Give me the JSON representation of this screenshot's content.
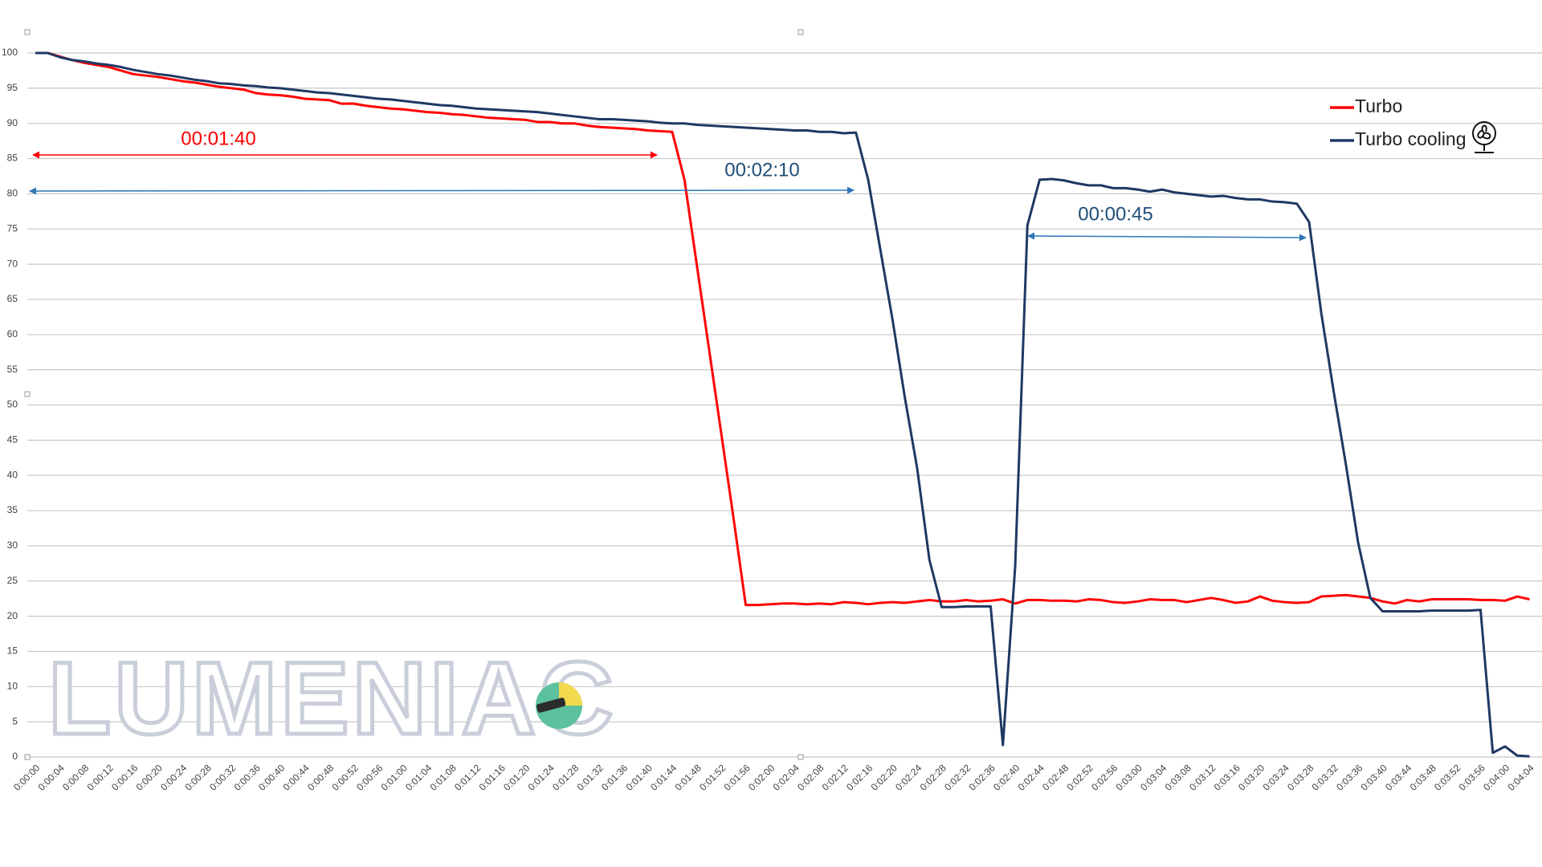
{
  "chart_data": {
    "type": "line",
    "categories": [
      "0:00:00",
      null,
      "0:00:04",
      null,
      "0:00:08",
      null,
      "0:00:12",
      null,
      "0:00:16",
      null,
      "0:00:20",
      null,
      "0:00:24",
      null,
      "0:00:28",
      null,
      "0:00:32",
      null,
      "0:00:36",
      null,
      "0:00:40",
      null,
      "0:00:44",
      null,
      "0:00:48",
      null,
      "0:00:52",
      null,
      "0:00:56",
      null,
      "0:01:00",
      null,
      "0:01:04",
      null,
      "0:01:08",
      null,
      "0:01:12",
      null,
      "0:01:16",
      null,
      "0:01:20",
      null,
      "0:01:24",
      null,
      "0:01:28",
      null,
      "0:01:32",
      null,
      "0:01:36",
      null,
      "0:01:40",
      null,
      "0:01:44",
      null,
      "0:01:48",
      null,
      "0:01:52",
      null,
      "0:01:56",
      null,
      "0:02:00",
      null,
      "0:02:04",
      null,
      "0:02:08",
      null,
      "0:02:12",
      null,
      "0:02:16",
      null,
      "0:02:20",
      null,
      "0:02:24",
      null,
      "0:02:28",
      null,
      "0:02:32",
      null,
      "0:02:36",
      null,
      "0:02:40",
      null,
      "0:02:44",
      null,
      "0:02:48",
      null,
      "0:02:52",
      null,
      "0:02:56",
      null,
      "0:03:00",
      null,
      "0:03:04",
      null,
      "0:03:08",
      null,
      "0:03:12",
      null,
      "0:03:16",
      null,
      "0:03:20",
      null,
      "0:03:24",
      null,
      "0:03:28",
      null,
      "0:03:32",
      null,
      "0:03:36",
      null,
      "0:03:40",
      null,
      "0:03:44",
      null,
      "0:03:48",
      null,
      "0:03:52",
      null,
      "0:03:56",
      null,
      "0:04:00",
      null,
      "0:04:04"
    ],
    "series": [
      {
        "name": "Turbo",
        "color": "#ff0000",
        "values": [
          100,
          100,
          99.5,
          99,
          98.6,
          98.3,
          98,
          97.5,
          97,
          96.8,
          96.6,
          96.3,
          96,
          95.8,
          95.5,
          95.2,
          95,
          94.8,
          94.3,
          94.1,
          94,
          93.8,
          93.5,
          93.4,
          93.3,
          92.8,
          92.8,
          92.5,
          92.3,
          92.1,
          92,
          91.8,
          91.6,
          91.5,
          91.3,
          91.2,
          91,
          90.8,
          90.7,
          90.6,
          90.5,
          90.2,
          90.2,
          90,
          90,
          89.7,
          89.5,
          89.4,
          89.3,
          89.2,
          89,
          88.9,
          88.8,
          82,
          70,
          58,
          46,
          34,
          21.6,
          21.6,
          21.7,
          21.8,
          21.8,
          21.7,
          21.8,
          21.7,
          22,
          21.9,
          21.7,
          21.9,
          22,
          21.9,
          22.1,
          22.3,
          22.1,
          22.1,
          22.3,
          22.1,
          22.2,
          22.4,
          21.8,
          22.3,
          22.3,
          22.2,
          22.2,
          22.1,
          22.4,
          22.3,
          22,
          21.9,
          22.1,
          22.4,
          22.3,
          22.3,
          22,
          22.3,
          22.6,
          22.3,
          21.9,
          22.1,
          22.8,
          22.2,
          22,
          21.9,
          22,
          22.8,
          22.9,
          23,
          22.8,
          22.6,
          22.1,
          21.8,
          22.3,
          22.1,
          22.4,
          22.4,
          22.4,
          22.4,
          22.3,
          22.3,
          22.2,
          22.8,
          22.4
        ]
      },
      {
        "name": "Turbo cooling",
        "color": "#1f3864",
        "values": [
          100,
          100,
          99.4,
          99,
          98.8,
          98.5,
          98.3,
          98,
          97.6,
          97.3,
          97,
          96.8,
          96.5,
          96.2,
          96,
          95.7,
          95.6,
          95.4,
          95.3,
          95.1,
          95,
          94.8,
          94.6,
          94.4,
          94.3,
          94.1,
          93.9,
          93.7,
          93.5,
          93.4,
          93.2,
          93,
          92.8,
          92.6,
          92.5,
          92.3,
          92.1,
          92,
          91.9,
          91.8,
          91.7,
          91.6,
          91.4,
          91.2,
          91,
          90.8,
          90.6,
          90.6,
          90.5,
          90.4,
          90.3,
          90.1,
          90,
          90,
          89.8,
          89.7,
          89.6,
          89.5,
          89.4,
          89.3,
          89.2,
          89.1,
          89,
          89,
          88.8,
          88.8,
          88.6,
          88.7,
          82,
          72,
          62,
          51,
          41,
          28,
          21.3,
          21.3,
          21.4,
          21.4,
          21.4,
          1.7,
          27,
          75.5,
          82,
          82.1,
          81.9,
          81.5,
          81.2,
          81.2,
          80.8,
          80.8,
          80.6,
          80.3,
          80.6,
          80.2,
          80,
          79.8,
          79.6,
          79.7,
          79.4,
          79.2,
          79.2,
          78.9,
          78.8,
          78.6,
          76,
          63,
          52,
          41.6,
          30.5,
          22.6,
          20.7,
          20.7,
          20.7,
          20.7,
          20.8,
          20.8,
          20.8,
          20.8,
          20.9,
          0.6,
          1.5,
          0.2,
          0.1
        ]
      }
    ],
    "ylim": [
      0,
      100
    ],
    "yticks": [
      0,
      5,
      10,
      15,
      20,
      25,
      30,
      35,
      40,
      45,
      50,
      55,
      60,
      65,
      70,
      75,
      80,
      85,
      90,
      95,
      100
    ],
    "grid": true,
    "legend": "upper right",
    "annotations": [
      {
        "text": "00:01:40",
        "color": "#ff0000"
      },
      {
        "text": "00:02:10",
        "color": "#1f4e79"
      },
      {
        "text": "00:00:45",
        "color": "#1f4e79"
      }
    ],
    "watermark": "LUMENIAC"
  }
}
